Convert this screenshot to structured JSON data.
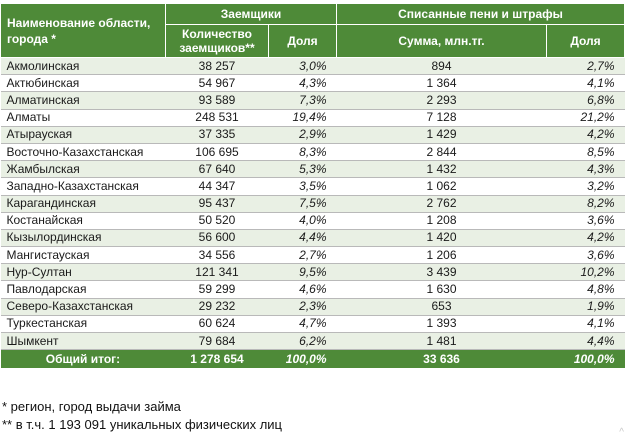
{
  "table": {
    "header": {
      "name_col": "Наименование области, города *",
      "group_borrowers": "Заемщики",
      "group_penalties": "Списанные пени и штрафы",
      "borrowers_count": "Количество заемщиков**",
      "borrowers_share": "Доля",
      "penalties_sum": "Сумма, млн.тг.",
      "penalties_share": "Доля"
    },
    "rows": [
      {
        "region": "Акмолинская",
        "count": "38 257",
        "share": "3,0%",
        "sum": "894",
        "sum_share": "2,7%"
      },
      {
        "region": "Актюбинская",
        "count": "54 967",
        "share": "4,3%",
        "sum": "1 364",
        "sum_share": "4,1%"
      },
      {
        "region": "Алматинская",
        "count": "93 589",
        "share": "7,3%",
        "sum": "2 293",
        "sum_share": "6,8%"
      },
      {
        "region": "Алматы",
        "count": "248 531",
        "share": "19,4%",
        "sum": "7 128",
        "sum_share": "21,2%"
      },
      {
        "region": "Атырауская",
        "count": "37 335",
        "share": "2,9%",
        "sum": "1 429",
        "sum_share": "4,2%"
      },
      {
        "region": "Восточно-Казахстанская",
        "count": "106 695",
        "share": "8,3%",
        "sum": "2 844",
        "sum_share": "8,5%"
      },
      {
        "region": "Жамбылская",
        "count": "67 640",
        "share": "5,3%",
        "sum": "1 432",
        "sum_share": "4,3%"
      },
      {
        "region": "Западно-Казахстанская",
        "count": "44 347",
        "share": "3,5%",
        "sum": "1 062",
        "sum_share": "3,2%"
      },
      {
        "region": "Карагандинская",
        "count": "95 437",
        "share": "7,5%",
        "sum": "2 762",
        "sum_share": "8,2%"
      },
      {
        "region": "Костанайская",
        "count": "50 520",
        "share": "4,0%",
        "sum": "1 208",
        "sum_share": "3,6%"
      },
      {
        "region": "Кызылординская",
        "count": "56 600",
        "share": "4,4%",
        "sum": "1 420",
        "sum_share": "4,2%"
      },
      {
        "region": "Мангистауская",
        "count": "34 556",
        "share": "2,7%",
        "sum": "1 206",
        "sum_share": "3,6%"
      },
      {
        "region": "Нур-Султан",
        "count": "121 341",
        "share": "9,5%",
        "sum": "3 439",
        "sum_share": "10,2%"
      },
      {
        "region": "Павлодарская",
        "count": "59 299",
        "share": "4,6%",
        "sum": "1 630",
        "sum_share": "4,8%"
      },
      {
        "region": "Северо-Казахстанская",
        "count": "29 232",
        "share": "2,3%",
        "sum": "653",
        "sum_share": "1,9%"
      },
      {
        "region": "Туркестанская",
        "count": "60 624",
        "share": "4,7%",
        "sum": "1 393",
        "sum_share": "4,1%"
      },
      {
        "region": "Шымкент",
        "count": "79 684",
        "share": "6,2%",
        "sum": "1 481",
        "sum_share": "4,4%"
      }
    ],
    "total": {
      "label": "Общий итог:",
      "count": "1 278 654",
      "share": "100,0%",
      "sum": "33 636",
      "sum_share": "100,0%"
    }
  },
  "notes": {
    "note1": "* регион, город выдачи займа",
    "note2": "** в т.ч. 1 193 091 уникальных физических лиц"
  },
  "colors": {
    "header_bg": "#4e8a38",
    "row_alt_bg": "#e9f0e4"
  }
}
